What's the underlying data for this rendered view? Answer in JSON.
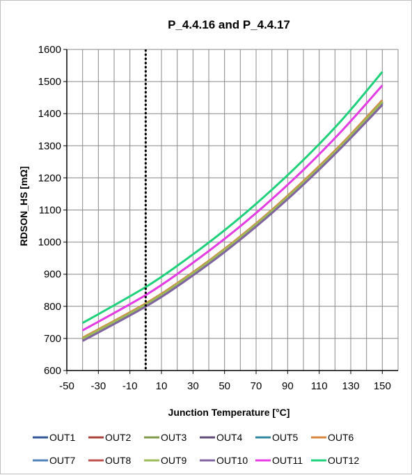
{
  "chart_data": {
    "type": "line",
    "title": "P_4.4.16 and P_4.4.17",
    "xlabel": "Junction Temperature  [°C]",
    "ylabel": "RDSON_HS [mΩ]",
    "xlim": [
      -50,
      160
    ],
    "ylim": [
      600,
      1600
    ],
    "xticks": [
      -50,
      -30,
      -10,
      10,
      30,
      50,
      70,
      90,
      110,
      130,
      150
    ],
    "yticks": [
      600,
      700,
      800,
      900,
      1000,
      1100,
      1200,
      1300,
      1400,
      1500,
      1600
    ],
    "x_gridlines": [
      -50,
      -40,
      -30,
      -20,
      -10,
      0,
      10,
      20,
      30,
      40,
      50,
      60,
      70,
      80,
      90,
      100,
      110,
      120,
      130,
      140,
      150,
      160
    ],
    "vertical_marker_x": 0,
    "grid": true,
    "legend_position": "bottom",
    "x": [
      -40,
      0,
      25,
      50,
      75,
      100,
      125,
      150
    ],
    "series": [
      {
        "name": "OUT1",
        "color": "#2f5597",
        "values": [
          698,
          805,
          885,
          975,
          1075,
          1185,
          1305,
          1435
        ]
      },
      {
        "name": "OUT2",
        "color": "#a9403a",
        "values": [
          699,
          806,
          886,
          976,
          1076,
          1186,
          1306,
          1437
        ]
      },
      {
        "name": "OUT3",
        "color": "#7f9a48",
        "values": [
          700,
          807,
          887,
          977,
          1077,
          1187,
          1307,
          1438
        ]
      },
      {
        "name": "OUT4",
        "color": "#604a7b",
        "values": [
          695,
          802,
          882,
          972,
          1072,
          1182,
          1302,
          1430
        ]
      },
      {
        "name": "OUT5",
        "color": "#31859c",
        "values": [
          697,
          804,
          884,
          974,
          1074,
          1184,
          1304,
          1433
        ]
      },
      {
        "name": "OUT6",
        "color": "#d9853b",
        "values": [
          702,
          809,
          889,
          979,
          1079,
          1190,
          1310,
          1442
        ]
      },
      {
        "name": "OUT7",
        "color": "#4f81bd",
        "values": [
          697,
          804,
          884,
          974,
          1074,
          1184,
          1304,
          1434
        ]
      },
      {
        "name": "OUT8",
        "color": "#c0504d",
        "values": [
          698,
          805,
          885,
          975,
          1075,
          1185,
          1305,
          1436
        ]
      },
      {
        "name": "OUT9",
        "color": "#9bbb59",
        "values": [
          699,
          806,
          886,
          976,
          1076,
          1186,
          1306,
          1437
        ]
      },
      {
        "name": "OUT10",
        "color": "#8064a2",
        "values": [
          692,
          799,
          879,
          969,
          1069,
          1179,
          1299,
          1427
        ]
      },
      {
        "name": "OUT11",
        "color": "#e43be4",
        "values": [
          725,
          835,
          918,
          1010,
          1112,
          1225,
          1350,
          1488
        ]
      },
      {
        "name": "OUT12",
        "color": "#1fd17a",
        "values": [
          748,
          860,
          944,
          1037,
          1141,
          1256,
          1384,
          1530
        ]
      }
    ]
  }
}
